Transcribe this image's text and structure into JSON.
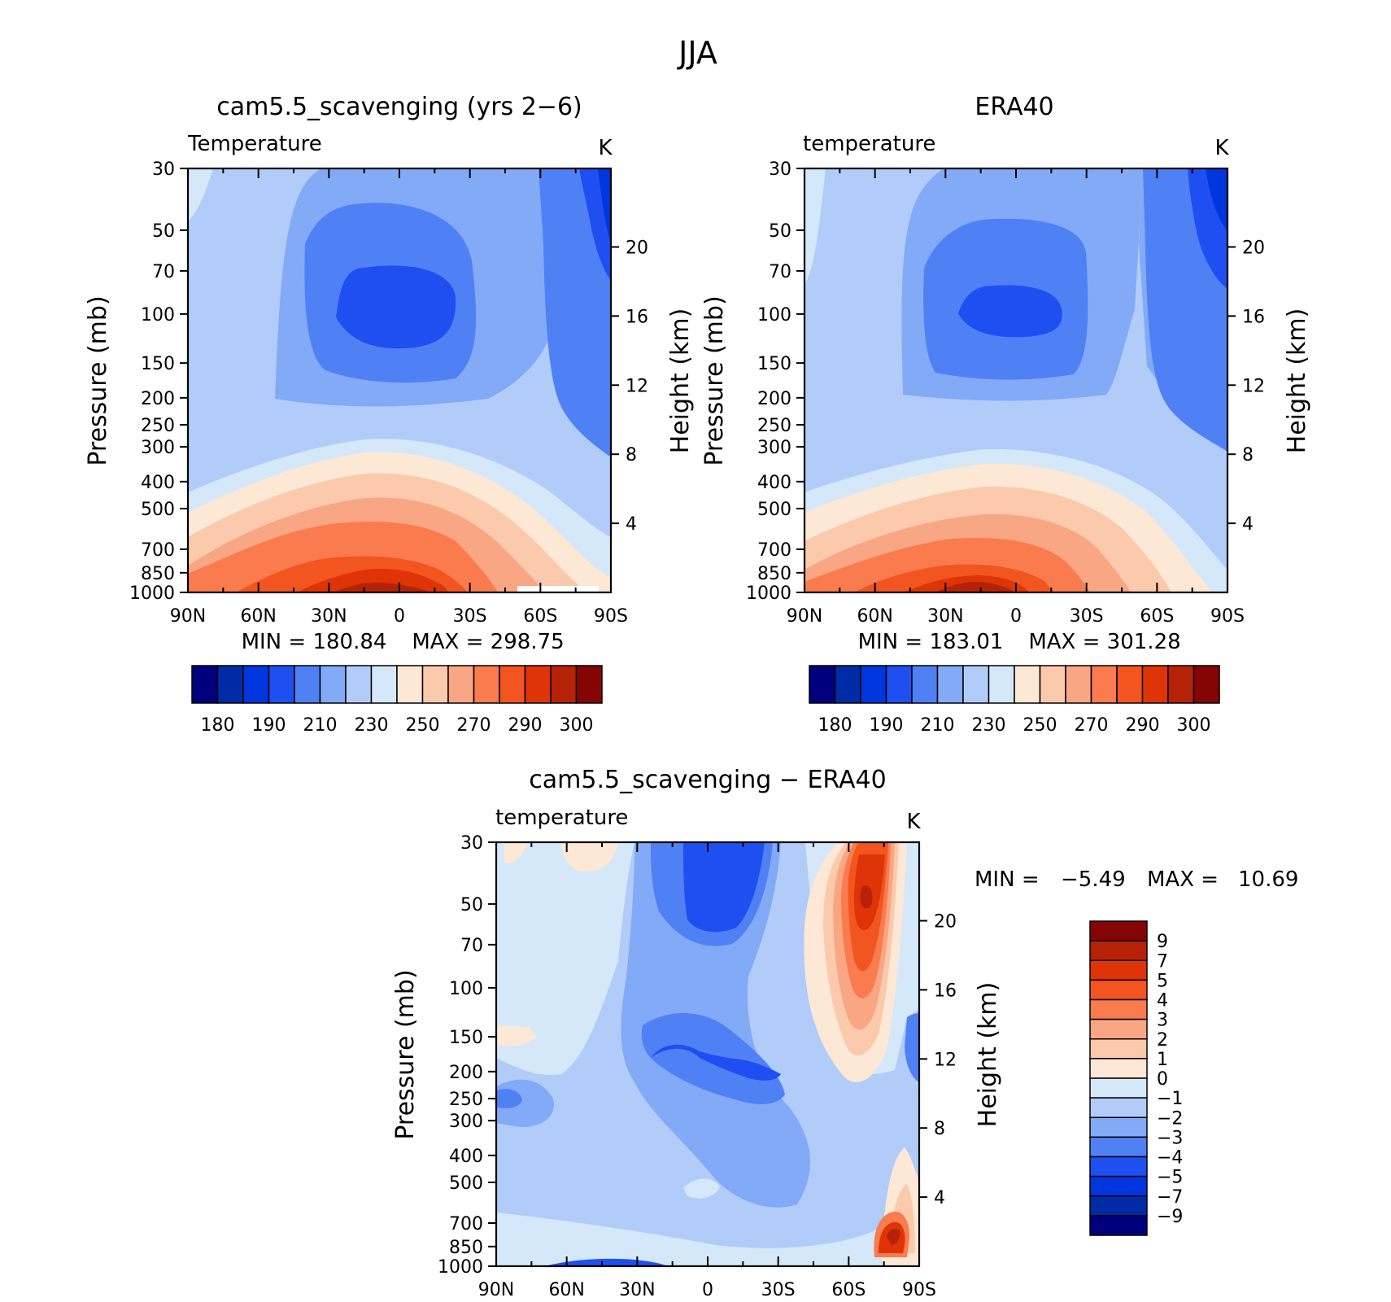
{
  "figure": {
    "title": "JJA"
  },
  "colors": {
    "abs_palette": [
      "#00007e",
      "#002ba6",
      "#0036dd",
      "#1f4ff0",
      "#4f81f5",
      "#82aaf7",
      "#b2ccf9",
      "#d5e8fa",
      "#fde8d6",
      "#fbc9ab",
      "#f8a684",
      "#f97b4e",
      "#f25520",
      "#de3408",
      "#b62208",
      "#850404"
    ],
    "diff_palette": [
      "#00007e",
      "#002ba6",
      "#0036dd",
      "#1f4ff0",
      "#4f81f5",
      "#82aaf7",
      "#b2ccf9",
      "#d5e8fa",
      "#fde8d6",
      "#fbc9ab",
      "#f8a684",
      "#f97b4e",
      "#f25520",
      "#de3408",
      "#b62208",
      "#850404"
    ]
  },
  "chart_data": [
    {
      "type": "heatmap",
      "title": "cam5.5_scavenging (yrs 2−6)",
      "subtitle_left": "Temperature",
      "units": "K",
      "xlabel": "",
      "ylabel": "Pressure (mb)",
      "ylabel_right": "Height (km)",
      "x_ticks": [
        "90N",
        "60N",
        "30N",
        "0",
        "30S",
        "60S",
        "90S"
      ],
      "y_ticks": [
        "30",
        "50",
        "70",
        "100",
        "150",
        "200",
        "250",
        "300",
        "400",
        "500",
        "700",
        "850",
        "1000"
      ],
      "right_ticks": [
        "4",
        "8",
        "12",
        "16",
        "20"
      ],
      "ylim": [
        1000,
        30
      ],
      "min_label": "MIN = 180.84",
      "max_label": "MAX = 298.75",
      "min": 180.84,
      "max": 298.75,
      "colorbar_labels": [
        "180",
        "190",
        "210",
        "230",
        "250",
        "270",
        "290",
        "300"
      ]
    },
    {
      "type": "heatmap",
      "title": "ERA40",
      "subtitle_left": "temperature",
      "units": "K",
      "xlabel": "",
      "ylabel": "Pressure (mb)",
      "ylabel_right": "Height (km)",
      "x_ticks": [
        "90N",
        "60N",
        "30N",
        "0",
        "30S",
        "60S",
        "90S"
      ],
      "y_ticks": [
        "30",
        "50",
        "70",
        "100",
        "150",
        "200",
        "250",
        "300",
        "400",
        "500",
        "700",
        "850",
        "1000"
      ],
      "right_ticks": [
        "4",
        "8",
        "12",
        "16",
        "20"
      ],
      "ylim": [
        1000,
        30
      ],
      "min_label": "MIN = 183.01",
      "max_label": "MAX = 301.28",
      "min": 183.01,
      "max": 301.28,
      "colorbar_labels": [
        "180",
        "190",
        "210",
        "230",
        "250",
        "270",
        "290",
        "300"
      ]
    },
    {
      "type": "heatmap",
      "title": "cam5.5_scavenging − ERA40",
      "subtitle_left": "temperature",
      "units": "K",
      "xlabel": "",
      "ylabel": "Pressure (mb)",
      "ylabel_right": "Height (km)",
      "x_ticks": [
        "90N",
        "60N",
        "30N",
        "0",
        "30S",
        "60S",
        "90S"
      ],
      "y_ticks": [
        "30",
        "50",
        "70",
        "100",
        "150",
        "200",
        "250",
        "300",
        "400",
        "500",
        "700",
        "850",
        "1000"
      ],
      "right_ticks": [
        "4",
        "8",
        "12",
        "16",
        "20"
      ],
      "ylim": [
        1000,
        30
      ],
      "min_label": "MIN =",
      "min_value": "−5.49",
      "max_label": "MAX =",
      "max_value": "10.69",
      "min": -5.49,
      "max": 10.69,
      "colorbar_labels": [
        "9",
        "7",
        "5",
        "4",
        "3",
        "2",
        "1",
        "0",
        "−1",
        "−2",
        "−3",
        "−4",
        "−5",
        "−7",
        "−9"
      ]
    }
  ]
}
